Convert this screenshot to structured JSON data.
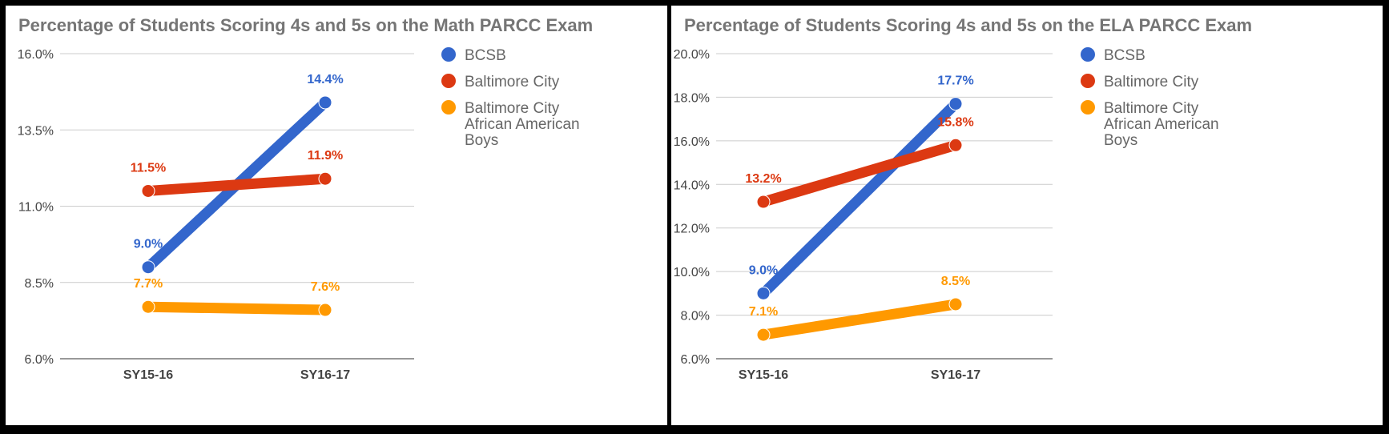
{
  "chart_data": [
    {
      "type": "line",
      "title": "Percentage of Students Scoring 4s and 5s on the Math PARCC Exam",
      "categories": [
        "SY15-16",
        "SY16-17"
      ],
      "yticks": [
        "6.0%",
        "8.5%",
        "11.0%",
        "13.5%",
        "16.0%"
      ],
      "ylim": [
        6.0,
        16.0
      ],
      "grid": true,
      "legend_position": "right",
      "series": [
        {
          "name": "BCSB",
          "color": "#3366cc",
          "values": [
            9.0,
            14.4
          ],
          "labels": [
            "9.0%",
            "14.4%"
          ]
        },
        {
          "name": "Baltimore City",
          "color": "#dc3912",
          "values": [
            11.5,
            11.9
          ],
          "labels": [
            "11.5%",
            "11.9%"
          ]
        },
        {
          "name": "Baltimore City African American Boys",
          "name_lines": [
            "Baltimore City",
            "African American",
            "Boys"
          ],
          "color": "#ff9900",
          "values": [
            7.7,
            7.6
          ],
          "labels": [
            "7.7%",
            "7.6%"
          ]
        }
      ]
    },
    {
      "type": "line",
      "title": "Percentage of Students Scoring 4s and 5s on the ELA PARCC Exam",
      "categories": [
        "SY15-16",
        "SY16-17"
      ],
      "yticks": [
        "6.0%",
        "8.0%",
        "10.0%",
        "12.0%",
        "14.0%",
        "16.0%",
        "18.0%",
        "20.0%"
      ],
      "ylim": [
        6.0,
        20.0
      ],
      "grid": true,
      "legend_position": "right",
      "series": [
        {
          "name": "BCSB",
          "color": "#3366cc",
          "values": [
            9.0,
            17.7
          ],
          "labels": [
            "9.0%",
            "17.7%"
          ]
        },
        {
          "name": "Baltimore City",
          "color": "#dc3912",
          "values": [
            13.2,
            15.8
          ],
          "labels": [
            "13.2%",
            "15.8%"
          ]
        },
        {
          "name": "Baltimore City African American Boys",
          "name_lines": [
            "Baltimore City",
            "African American",
            "Boys"
          ],
          "color": "#ff9900",
          "values": [
            7.1,
            8.5
          ],
          "labels": [
            "7.1%",
            "8.5%"
          ]
        }
      ]
    }
  ]
}
